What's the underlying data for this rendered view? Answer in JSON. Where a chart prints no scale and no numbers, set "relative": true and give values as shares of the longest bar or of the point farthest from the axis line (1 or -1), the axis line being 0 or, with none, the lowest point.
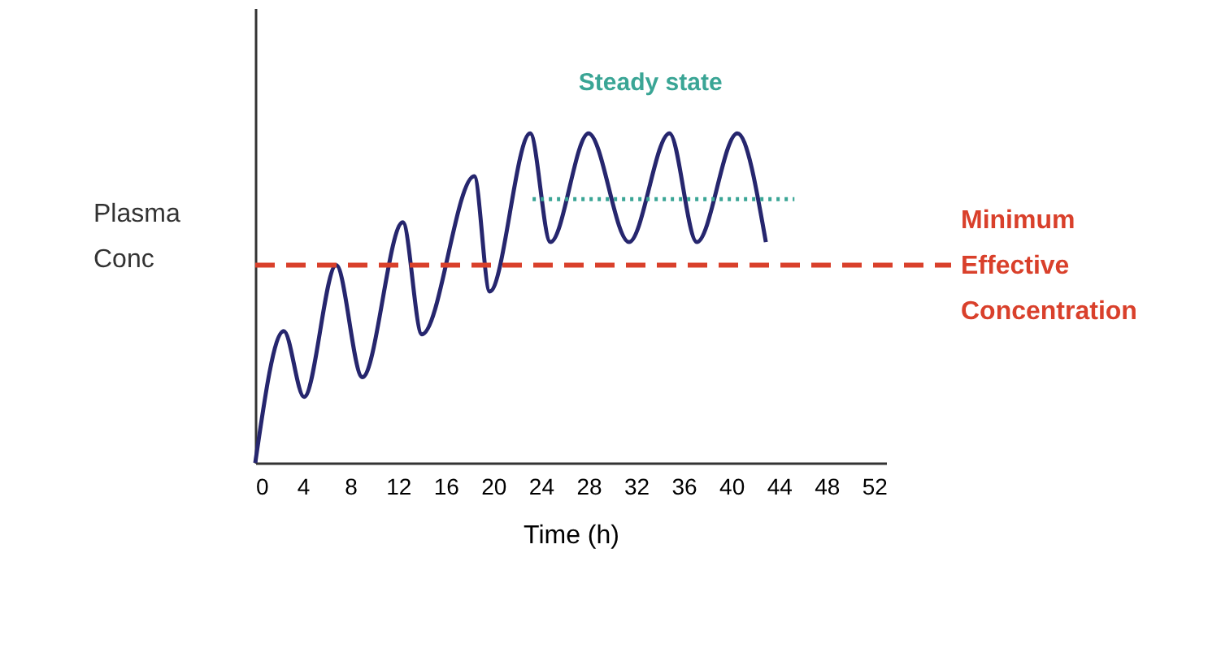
{
  "chart_data": {
    "type": "line",
    "relative": true,
    "xlabel": "Time (h)",
    "ylabel": "Plasma Conc",
    "xlim": [
      0,
      53
    ],
    "xticks": [
      0,
      4,
      8,
      12,
      16,
      20,
      24,
      28,
      32,
      36,
      40,
      44,
      48,
      52
    ],
    "grid": false,
    "series": [
      {
        "color": "#26266e",
        "line_style": "solid",
        "x": [
          0,
          2.4,
          4.1,
          6.8,
          9.0,
          12.4,
          14.0,
          18.4,
          19.7,
          23.1,
          24.8,
          28.0,
          31.4,
          34.8,
          37.1,
          40.5,
          42.9
        ],
        "values": [
          0,
          0.4,
          0.2,
          0.6,
          0.26,
          0.73,
          0.39,
          0.87,
          0.52,
          1,
          0.67,
          1,
          0.67,
          1,
          0.67,
          1,
          0.67
        ]
      },
      {
        "name": "Steady state",
        "color": "#3aa595",
        "line_style": "dotted",
        "x": [
          23.3,
          45.3
        ],
        "values": [
          0.8,
          0.8
        ]
      }
    ],
    "ref_lines": [
      {
        "axis": "y",
        "value": 0.6,
        "label": "Minimum Effective Concentration",
        "color": "#d9402b",
        "line_style": "dashed"
      }
    ]
  }
}
